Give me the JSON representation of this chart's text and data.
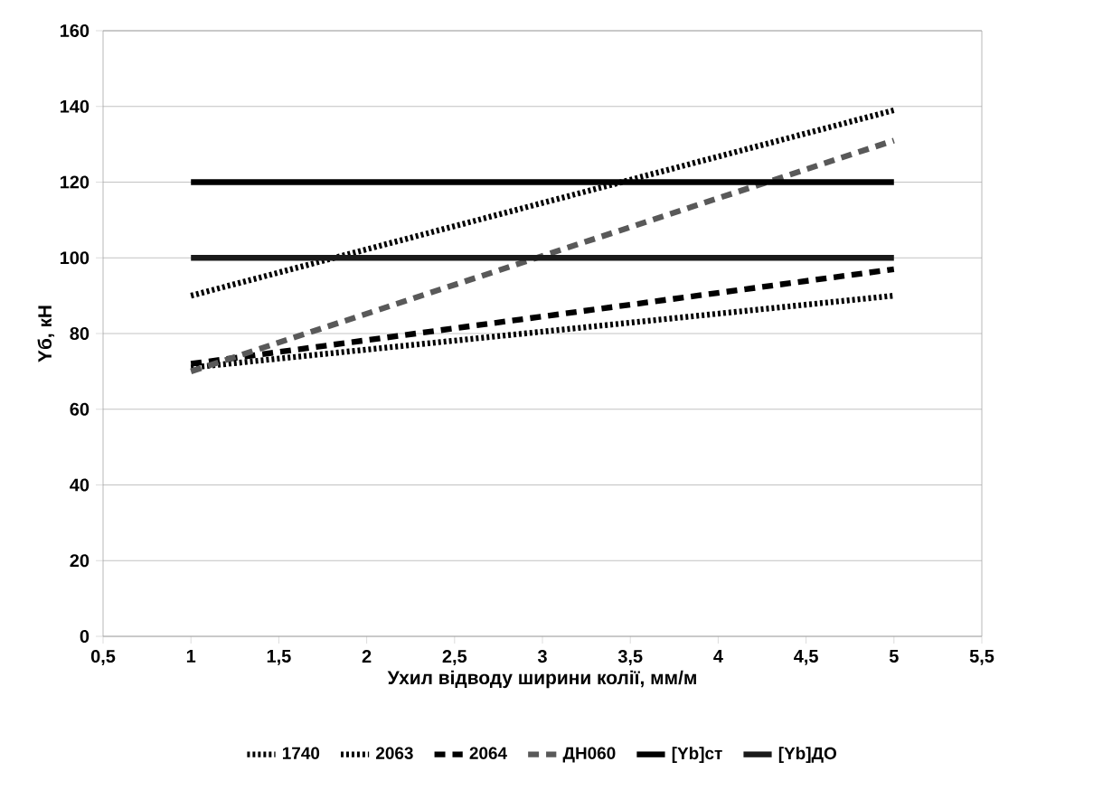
{
  "chart_data": {
    "type": "line",
    "xlabel": "Ухил відводу ширини колії, мм/м",
    "ylabel": "Yб, кН",
    "xlim": [
      0.5,
      5.5
    ],
    "ylim": [
      0,
      160
    ],
    "xticks": [
      {
        "value": 0.5,
        "label": "0,5"
      },
      {
        "value": 1,
        "label": "1"
      },
      {
        "value": 1.5,
        "label": "1,5"
      },
      {
        "value": 2,
        "label": "2"
      },
      {
        "value": 2.5,
        "label": "2,5"
      },
      {
        "value": 3,
        "label": "3"
      },
      {
        "value": 3.5,
        "label": "3,5"
      },
      {
        "value": 4,
        "label": "4"
      },
      {
        "value": 4.5,
        "label": "4,5"
      },
      {
        "value": 5,
        "label": "5"
      },
      {
        "value": 5.5,
        "label": "5,5"
      }
    ],
    "yticks": [
      0,
      20,
      40,
      60,
      80,
      100,
      120,
      140,
      160
    ],
    "grid": "y",
    "legend": "bottom",
    "marker": "none",
    "x": [
      1,
      5
    ],
    "series": [
      {
        "name": "1740",
        "color": "#000000",
        "line_style": "dotted",
        "values": [
          71,
          90
        ]
      },
      {
        "name": "2063",
        "color": "#000000",
        "line_style": "dotted",
        "values": [
          90,
          139
        ]
      },
      {
        "name": "2064",
        "color": "#000000",
        "line_style": "dashed",
        "values": [
          72,
          97
        ]
      },
      {
        "name": "ДН060",
        "color": "#595959",
        "line_style": "dashed",
        "values": [
          70,
          131
        ]
      },
      {
        "name": "[Yb]ст",
        "color": "#000000",
        "line_style": "solid",
        "values": [
          120,
          120
        ]
      },
      {
        "name": "[Yb]ДО",
        "color": "#1a1a1a",
        "line_style": "solid",
        "values": [
          100,
          100
        ]
      }
    ]
  }
}
